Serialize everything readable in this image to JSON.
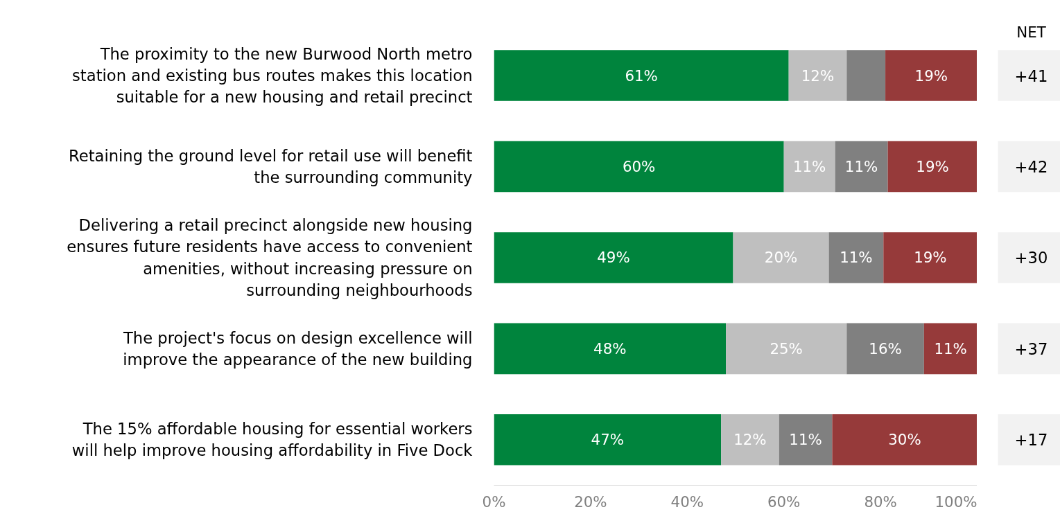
{
  "chart_data": {
    "type": "bar",
    "orientation": "horizontal",
    "stacked": true,
    "categories": [
      "The proximity to the new Burwood North metro\nstation and existing bus routes makes this location\nsuitable for a new housing and retail precinct",
      "Retaining the ground level for retail use will benefit\nthe surrounding community",
      "Delivering a retail precinct alongside new housing\nensures future residents have access to convenient\namenities, without increasing pressure on\nsurrounding neighbourhoods",
      "The project's focus on design excellence will\nimprove the appearance of the new building",
      "The 15% affordable housing for essential workers\nwill help improve housing affordability in Five Dock"
    ],
    "series": [
      {
        "color": "#00843d",
        "values": [
          61,
          60,
          49.5,
          48,
          47
        ],
        "value_labels": [
          "61%",
          "60%",
          "49%",
          "48%",
          "47%"
        ]
      },
      {
        "color": "#bfbfbf",
        "values": [
          12,
          10.6,
          19.8,
          25,
          12
        ],
        "value_labels": [
          "12%",
          "11%",
          "20%",
          "25%",
          "12%"
        ]
      },
      {
        "color": "#808080",
        "values": [
          8,
          10.9,
          11.3,
          16,
          11
        ],
        "value_labels": [
          null,
          "11%",
          "11%",
          "16%",
          "11%"
        ]
      },
      {
        "color": "#963a3a",
        "values": [
          19,
          18.5,
          19.4,
          11,
          30
        ],
        "value_labels": [
          "19%",
          "19%",
          "19%",
          "11%",
          "30%"
        ]
      }
    ],
    "xlim": [
      0,
      100
    ],
    "xticks": [
      {
        "value": 0,
        "label": "0%"
      },
      {
        "value": 20,
        "label": "20%"
      },
      {
        "value": 40,
        "label": "40%"
      },
      {
        "value": 60,
        "label": "60%"
      },
      {
        "value": 80,
        "label": "80%"
      },
      {
        "value": 100,
        "label": "100%"
      }
    ],
    "grid": false,
    "annotations": [
      "NET",
      "+41",
      "+42",
      "+30",
      "+37",
      "+17"
    ]
  }
}
